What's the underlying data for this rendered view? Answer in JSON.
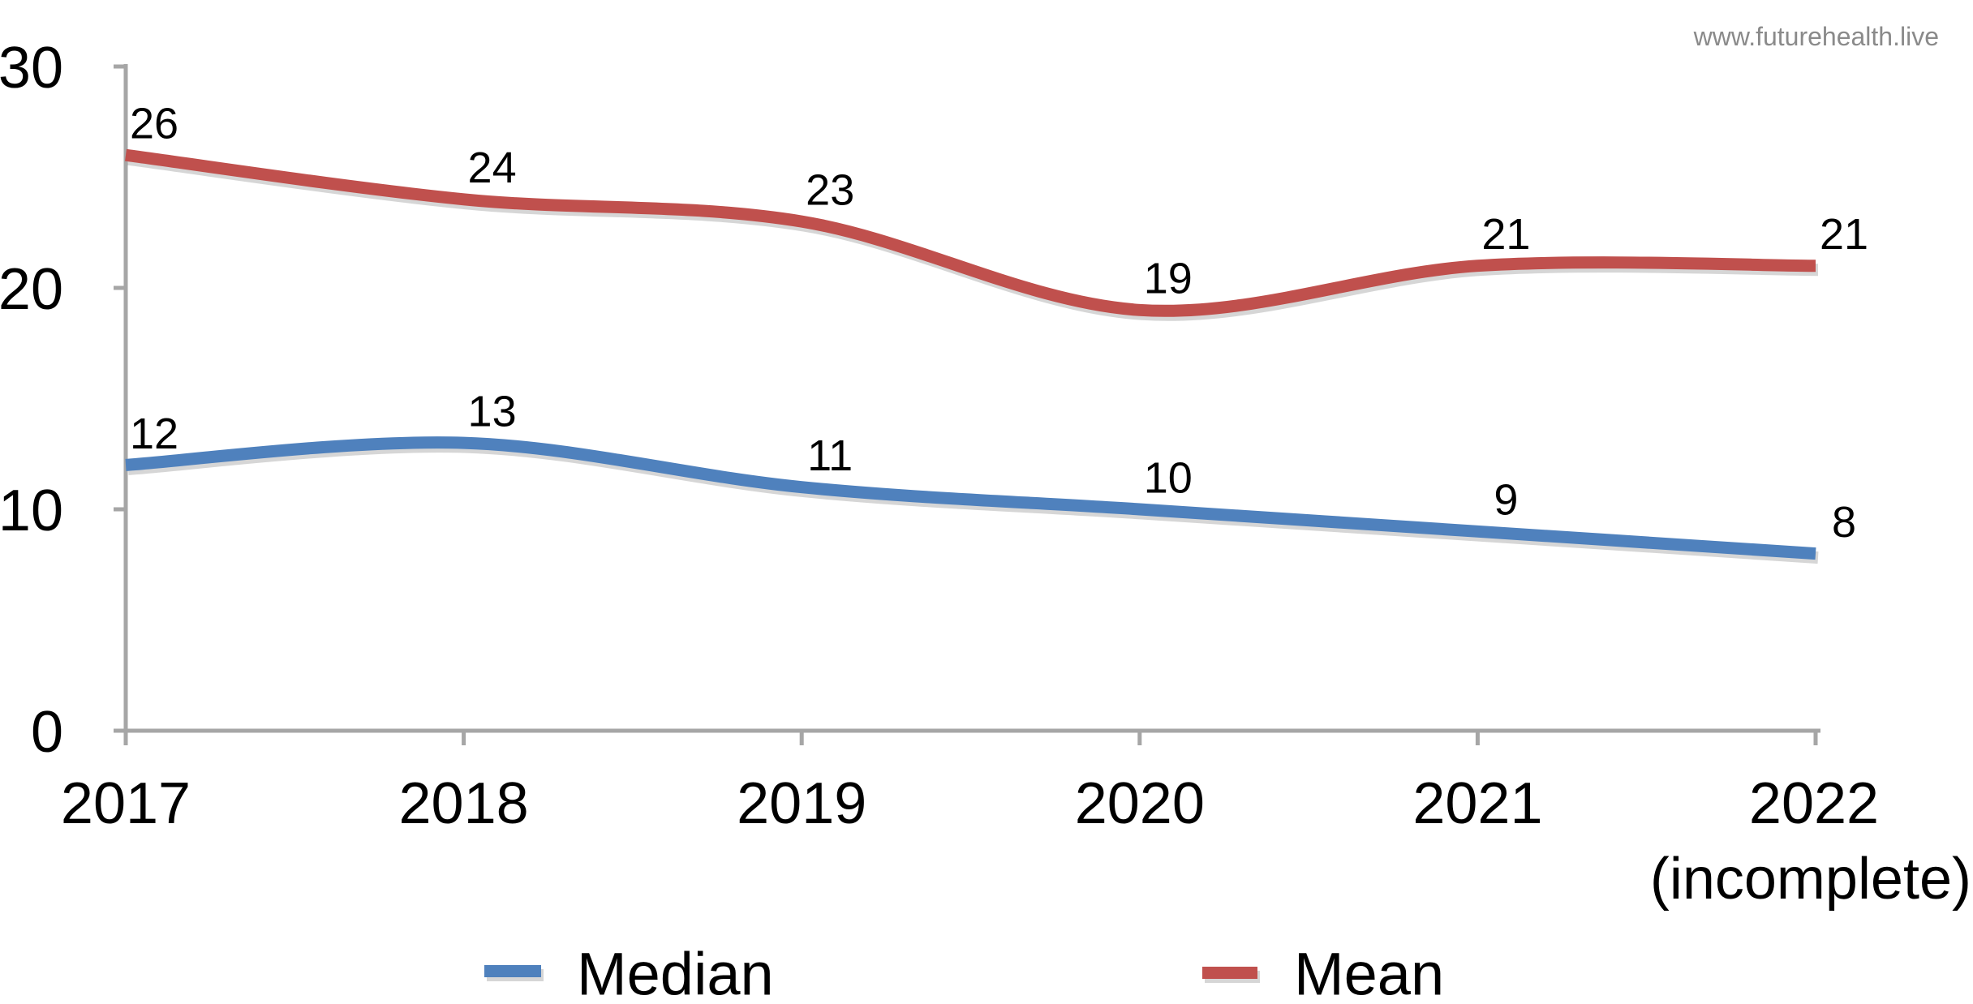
{
  "watermark": "www.futurehealth.live",
  "colors": {
    "median": "#4F81BD",
    "mean": "#C0504D",
    "axis": "#A6A6A6",
    "label_text": "#000000",
    "watermark_text": "#8A8A8A",
    "background": "#FFFFFF"
  },
  "legend": {
    "position": "bottom",
    "items": [
      {
        "label": "Median",
        "series": "median"
      },
      {
        "label": "Mean",
        "series": "mean"
      }
    ]
  },
  "x_axis": {
    "tick_labels": [
      "2017",
      "2018",
      "2019",
      "2020",
      "2021",
      "2022"
    ],
    "last_label_note": "(incomplete)"
  },
  "y_axis": {
    "tick_labels": [
      "0",
      "10",
      "20",
      "30"
    ]
  },
  "chart_data": {
    "type": "line",
    "title": "",
    "xlabel": "",
    "ylabel": "",
    "categories": [
      "2017",
      "2018",
      "2019",
      "2020",
      "2021",
      "2022 (incomplete)"
    ],
    "series": [
      {
        "name": "Median",
        "color": "#4F81BD",
        "values": [
          12,
          13,
          11,
          10,
          9,
          8
        ]
      },
      {
        "name": "Mean",
        "color": "#C0504D",
        "values": [
          26,
          24,
          23,
          19,
          21,
          21
        ]
      }
    ],
    "ylim": [
      0,
      30
    ],
    "yticks": [
      0,
      10,
      20,
      30
    ],
    "grid": false,
    "legend_position": "bottom",
    "smoothed_lines": true,
    "data_labels": true
  }
}
